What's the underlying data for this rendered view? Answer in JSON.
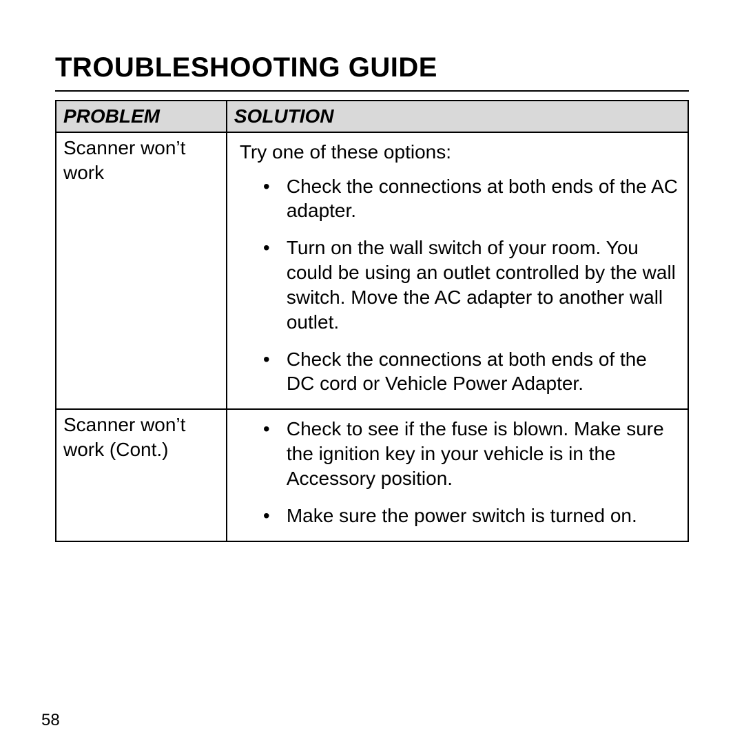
{
  "title": "Troubleshooting Guide",
  "page_number": "58",
  "table": {
    "headers": {
      "problem": "Problem",
      "solution": "Solution"
    },
    "rows": {
      "r0": {
        "problem": "Scanner won’t work",
        "intro": "Try one of these options:",
        "bullets": {
          "b0": "Check the connections at both ends of the AC adapter.",
          "b1": "Turn on the wall switch of your room. You could be using an outlet controlled by the wall switch. Move the AC adapter to another wall outlet.",
          "b2": "Check the connections at both ends of the DC cord or Vehicle Power Adapter."
        }
      },
      "r1": {
        "problem": "Scanner won’t work (Cont.)",
        "bullets": {
          "b0": "Check to see if the fuse is blown. Make sure the ignition key in your vehicle is in the Accessory position.",
          "b1": "Make sure the power switch is turned on."
        }
      }
    }
  }
}
